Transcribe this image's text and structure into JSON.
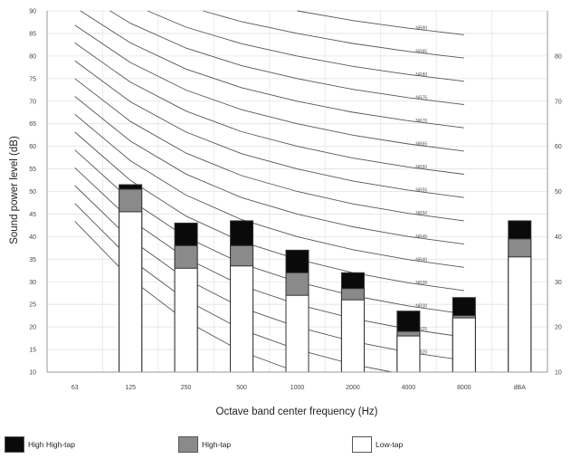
{
  "chart_data": {
    "type": "bar",
    "xlabel": "Octave band center frequency (Hz)",
    "ylabel": "Sound power level (dB)",
    "ylim": [
      10,
      90
    ],
    "yticks": [
      10,
      15,
      20,
      25,
      30,
      35,
      40,
      45,
      50,
      55,
      60,
      65,
      70,
      75,
      80,
      85,
      90
    ],
    "right_tick_labels": [
      "10",
      "20",
      "30",
      "40",
      "50",
      "60",
      "70",
      "80"
    ],
    "categories": [
      "63",
      "125",
      "250",
      "500",
      "1000",
      "2000",
      "4000",
      "8000",
      "dBA"
    ],
    "stacking": "overlaid (each bar shows cumulative level)",
    "series": [
      {
        "name": "Low-tap",
        "color": "#ffffff",
        "values": [
          null,
          45.5,
          33,
          33.5,
          27,
          26,
          18,
          22,
          35.5
        ]
      },
      {
        "name": "High-tap",
        "color": "#8a8a8a",
        "values": [
          null,
          50.5,
          38,
          38,
          32,
          28.5,
          19,
          22.5,
          39.5
        ]
      },
      {
        "name": "High High-tap",
        "color": "#0a0a0a",
        "values": [
          null,
          51.5,
          43,
          43.5,
          37,
          32,
          23.5,
          26.5,
          43.5
        ]
      }
    ],
    "nr_curves": {
      "labels": [
        "NR10",
        "NR15",
        "NR20",
        "NR25",
        "NR30",
        "NR35",
        "NR40",
        "NR45",
        "NR50",
        "NR55",
        "NR60",
        "NR65",
        "NR70",
        "NR75",
        "NR80",
        "NR85",
        "NR90"
      ],
      "nr_values": [
        10,
        15,
        20,
        25,
        30,
        35,
        40,
        45,
        50,
        55,
        60,
        65,
        70,
        75,
        80,
        85,
        90
      ]
    },
    "legend": {
      "placement": "bottom",
      "entries": [
        "High High-tap",
        "High-tap",
        "Low-tap"
      ]
    },
    "grid": true
  }
}
